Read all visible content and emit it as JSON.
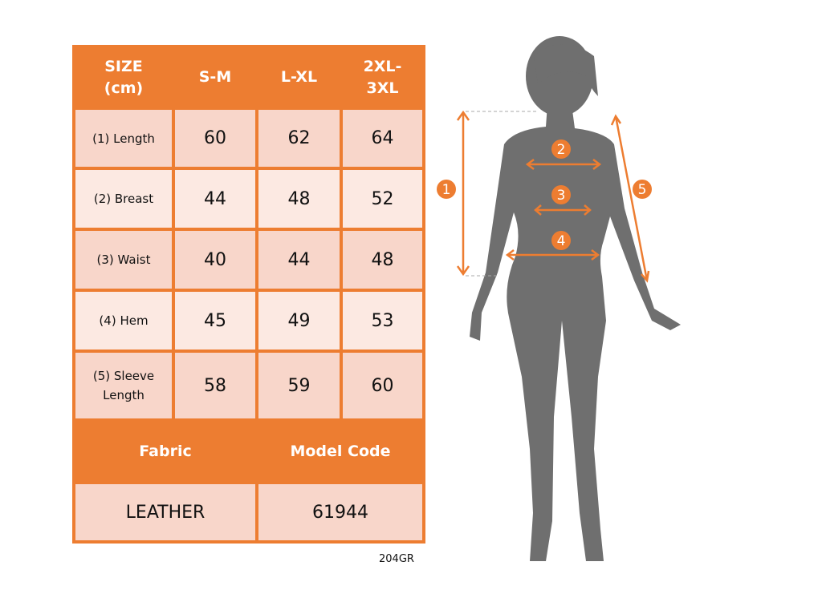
{
  "table": {
    "header": [
      "SIZE\n(cm)",
      "S-M",
      "L-XL",
      "2XL-\n3XL"
    ],
    "rows": [
      {
        "label": "(1) Length",
        "values": [
          "60",
          "62",
          "64"
        ]
      },
      {
        "label": "(2) Breast",
        "values": [
          "44",
          "48",
          "52"
        ]
      },
      {
        "label": "(3) Waist",
        "values": [
          "40",
          "44",
          "48"
        ]
      },
      {
        "label": "(4) Hem",
        "values": [
          "45",
          "49",
          "53"
        ]
      },
      {
        "label": "(5) Sleeve\nLength",
        "values": [
          "58",
          "59",
          "60"
        ]
      }
    ],
    "fabric_label": "Fabric",
    "model_code_label": "Model Code",
    "fabric_value": "LEATHER",
    "model_code_value": "61944"
  },
  "product_code": "204GR",
  "figure": {
    "markers": [
      "1",
      "2",
      "3",
      "4",
      "5"
    ]
  },
  "colors": {
    "accent": "#ed7d31",
    "row_dark": "#f8d6ca",
    "row_light": "#fce9e2",
    "silhouette": "#6f6f6f"
  }
}
